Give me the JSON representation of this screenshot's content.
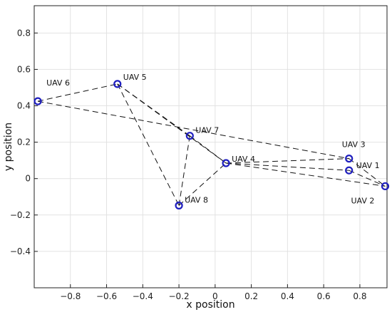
{
  "chart_data": {
    "type": "scatter",
    "title": "",
    "xlabel": "x position",
    "ylabel": "y position",
    "xlim": [
      -1,
      0.95
    ],
    "ylim": [
      -0.6,
      0.95
    ],
    "xticks": [
      -0.8,
      -0.6,
      -0.4,
      -0.2,
      0,
      0.2,
      0.4,
      0.6,
      0.8
    ],
    "xtick_labels": [
      "−0.8",
      "−0.6",
      "−0.4",
      "−0.2",
      "0",
      "0.2",
      "0.4",
      "0.6",
      "0.8"
    ],
    "yticks": [
      -0.4,
      -0.2,
      0,
      0.2,
      0.4,
      0.6,
      0.8
    ],
    "ytick_labels": [
      "−0.4",
      "−0.2",
      "0",
      "0.2",
      "0.4",
      "0.6",
      "0.8"
    ],
    "grid": true,
    "marker_color": "#1f1fbf",
    "link_color": "#111111",
    "points": [
      {
        "label": "UAV 1",
        "x": 0.74,
        "y": 0.045
      },
      {
        "label": "UAV 2",
        "x": 0.94,
        "y": -0.042
      },
      {
        "label": "UAV 3",
        "x": 0.74,
        "y": 0.11
      },
      {
        "label": "UAV 4",
        "x": 0.06,
        "y": 0.085
      },
      {
        "label": "UAV 5",
        "x": -0.54,
        "y": 0.52
      },
      {
        "label": "UAV 6",
        "x": -0.98,
        "y": 0.425
      },
      {
        "label": "UAV 7",
        "x": -0.14,
        "y": 0.235
      },
      {
        "label": "UAV 8",
        "x": -0.2,
        "y": -0.148
      }
    ],
    "edges": [
      [
        "UAV 6",
        "UAV 5"
      ],
      [
        "UAV 6",
        "UAV 3"
      ],
      [
        "UAV 5",
        "UAV 7"
      ],
      [
        "UAV 5",
        "UAV 4"
      ],
      [
        "UAV 5",
        "UAV 8"
      ],
      [
        "UAV 7",
        "UAV 8"
      ],
      [
        "UAV 7",
        "UAV 4"
      ],
      [
        "UAV 8",
        "UAV 4"
      ],
      [
        "UAV 4",
        "UAV 3"
      ],
      [
        "UAV 4",
        "UAV 1"
      ],
      [
        "UAV 4",
        "UAV 2"
      ],
      [
        "UAV 3",
        "UAV 2"
      ],
      [
        "UAV 1",
        "UAV 2"
      ]
    ]
  }
}
